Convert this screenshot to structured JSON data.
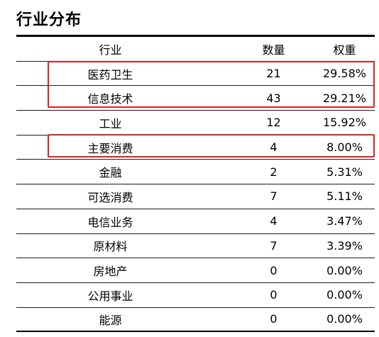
{
  "title": "行业分布",
  "header": {
    "industry": "行业",
    "count": "数量",
    "weight": "权重"
  },
  "rows": [
    {
      "industry": "医药卫生",
      "count": "21",
      "weight": "29.58%"
    },
    {
      "industry": "信息技术",
      "count": "43",
      "weight": "29.21%"
    },
    {
      "industry": "工业",
      "count": "12",
      "weight": "15.92%"
    },
    {
      "industry": "主要消费",
      "count": "4",
      "weight": "8.00%"
    },
    {
      "industry": "金融",
      "count": "2",
      "weight": "5.31%"
    },
    {
      "industry": "可选消费",
      "count": "7",
      "weight": "5.11%"
    },
    {
      "industry": "电信业务",
      "count": "4",
      "weight": "3.47%"
    },
    {
      "industry": "原材料",
      "count": "7",
      "weight": "3.39%"
    },
    {
      "industry": "房地产",
      "count": "0",
      "weight": "0.00%"
    },
    {
      "industry": "公用事业",
      "count": "0",
      "weight": "0.00%"
    },
    {
      "industry": "能源",
      "count": "0",
      "weight": "0.00%"
    }
  ],
  "highlight_color": "#e0201f"
}
